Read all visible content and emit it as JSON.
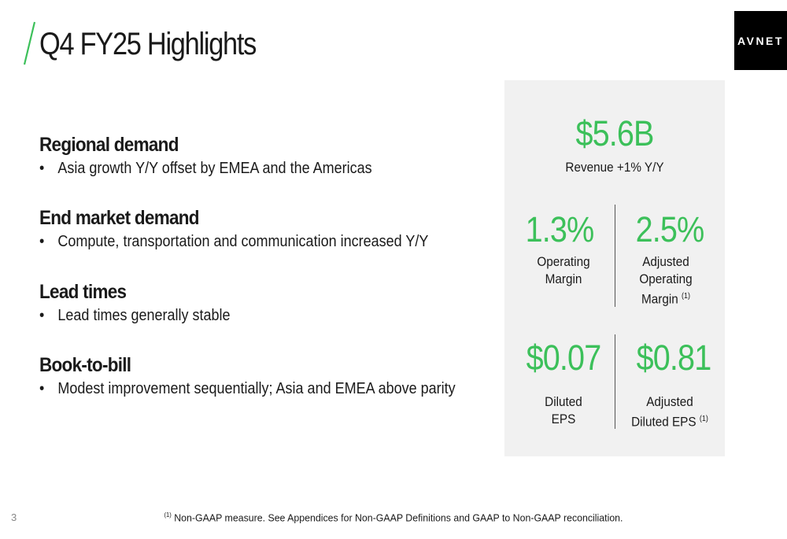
{
  "slide": {
    "title": "Q4 FY25 Highlights",
    "logo_text": "AVNET",
    "accent_color": "#3cc05a",
    "page_number": "3"
  },
  "sections": [
    {
      "heading": "Regional demand",
      "bullet": "Asia growth Y/Y offset by EMEA and the Americas"
    },
    {
      "heading": "End market demand",
      "bullet": "Compute, transportation and communication increased Y/Y"
    },
    {
      "heading": "Lead times",
      "bullet": "Lead times generally stable"
    },
    {
      "heading": "Book-to-bill",
      "bullet": "Modest improvement sequentially; Asia and EMEA above parity"
    }
  ],
  "bullet_char": "•",
  "metrics": {
    "revenue": {
      "value": "$5.6B",
      "label": "Revenue +1% Y/Y"
    },
    "operating_margin": {
      "value": "1.3%",
      "label_line1": "Operating",
      "label_line2": "Margin"
    },
    "adjusted_operating_margin": {
      "value": "2.5%",
      "label_line1": "Adjusted",
      "label_line2": "Operating",
      "label_line3": "Margin",
      "footnote_ref": "(1)"
    },
    "diluted_eps": {
      "value": "$0.07",
      "label_line1": "Diluted",
      "label_line2": "EPS"
    },
    "adjusted_diluted_eps": {
      "value": "$0.81",
      "label_line1": "Adjusted",
      "label_line2": "Diluted EPS",
      "footnote_ref": "(1)"
    }
  },
  "footnote": {
    "ref": "(1)",
    "text": "Non-GAAP measure. See Appendices for Non-GAAP Definitions and GAAP to Non-GAAP reconciliation."
  }
}
